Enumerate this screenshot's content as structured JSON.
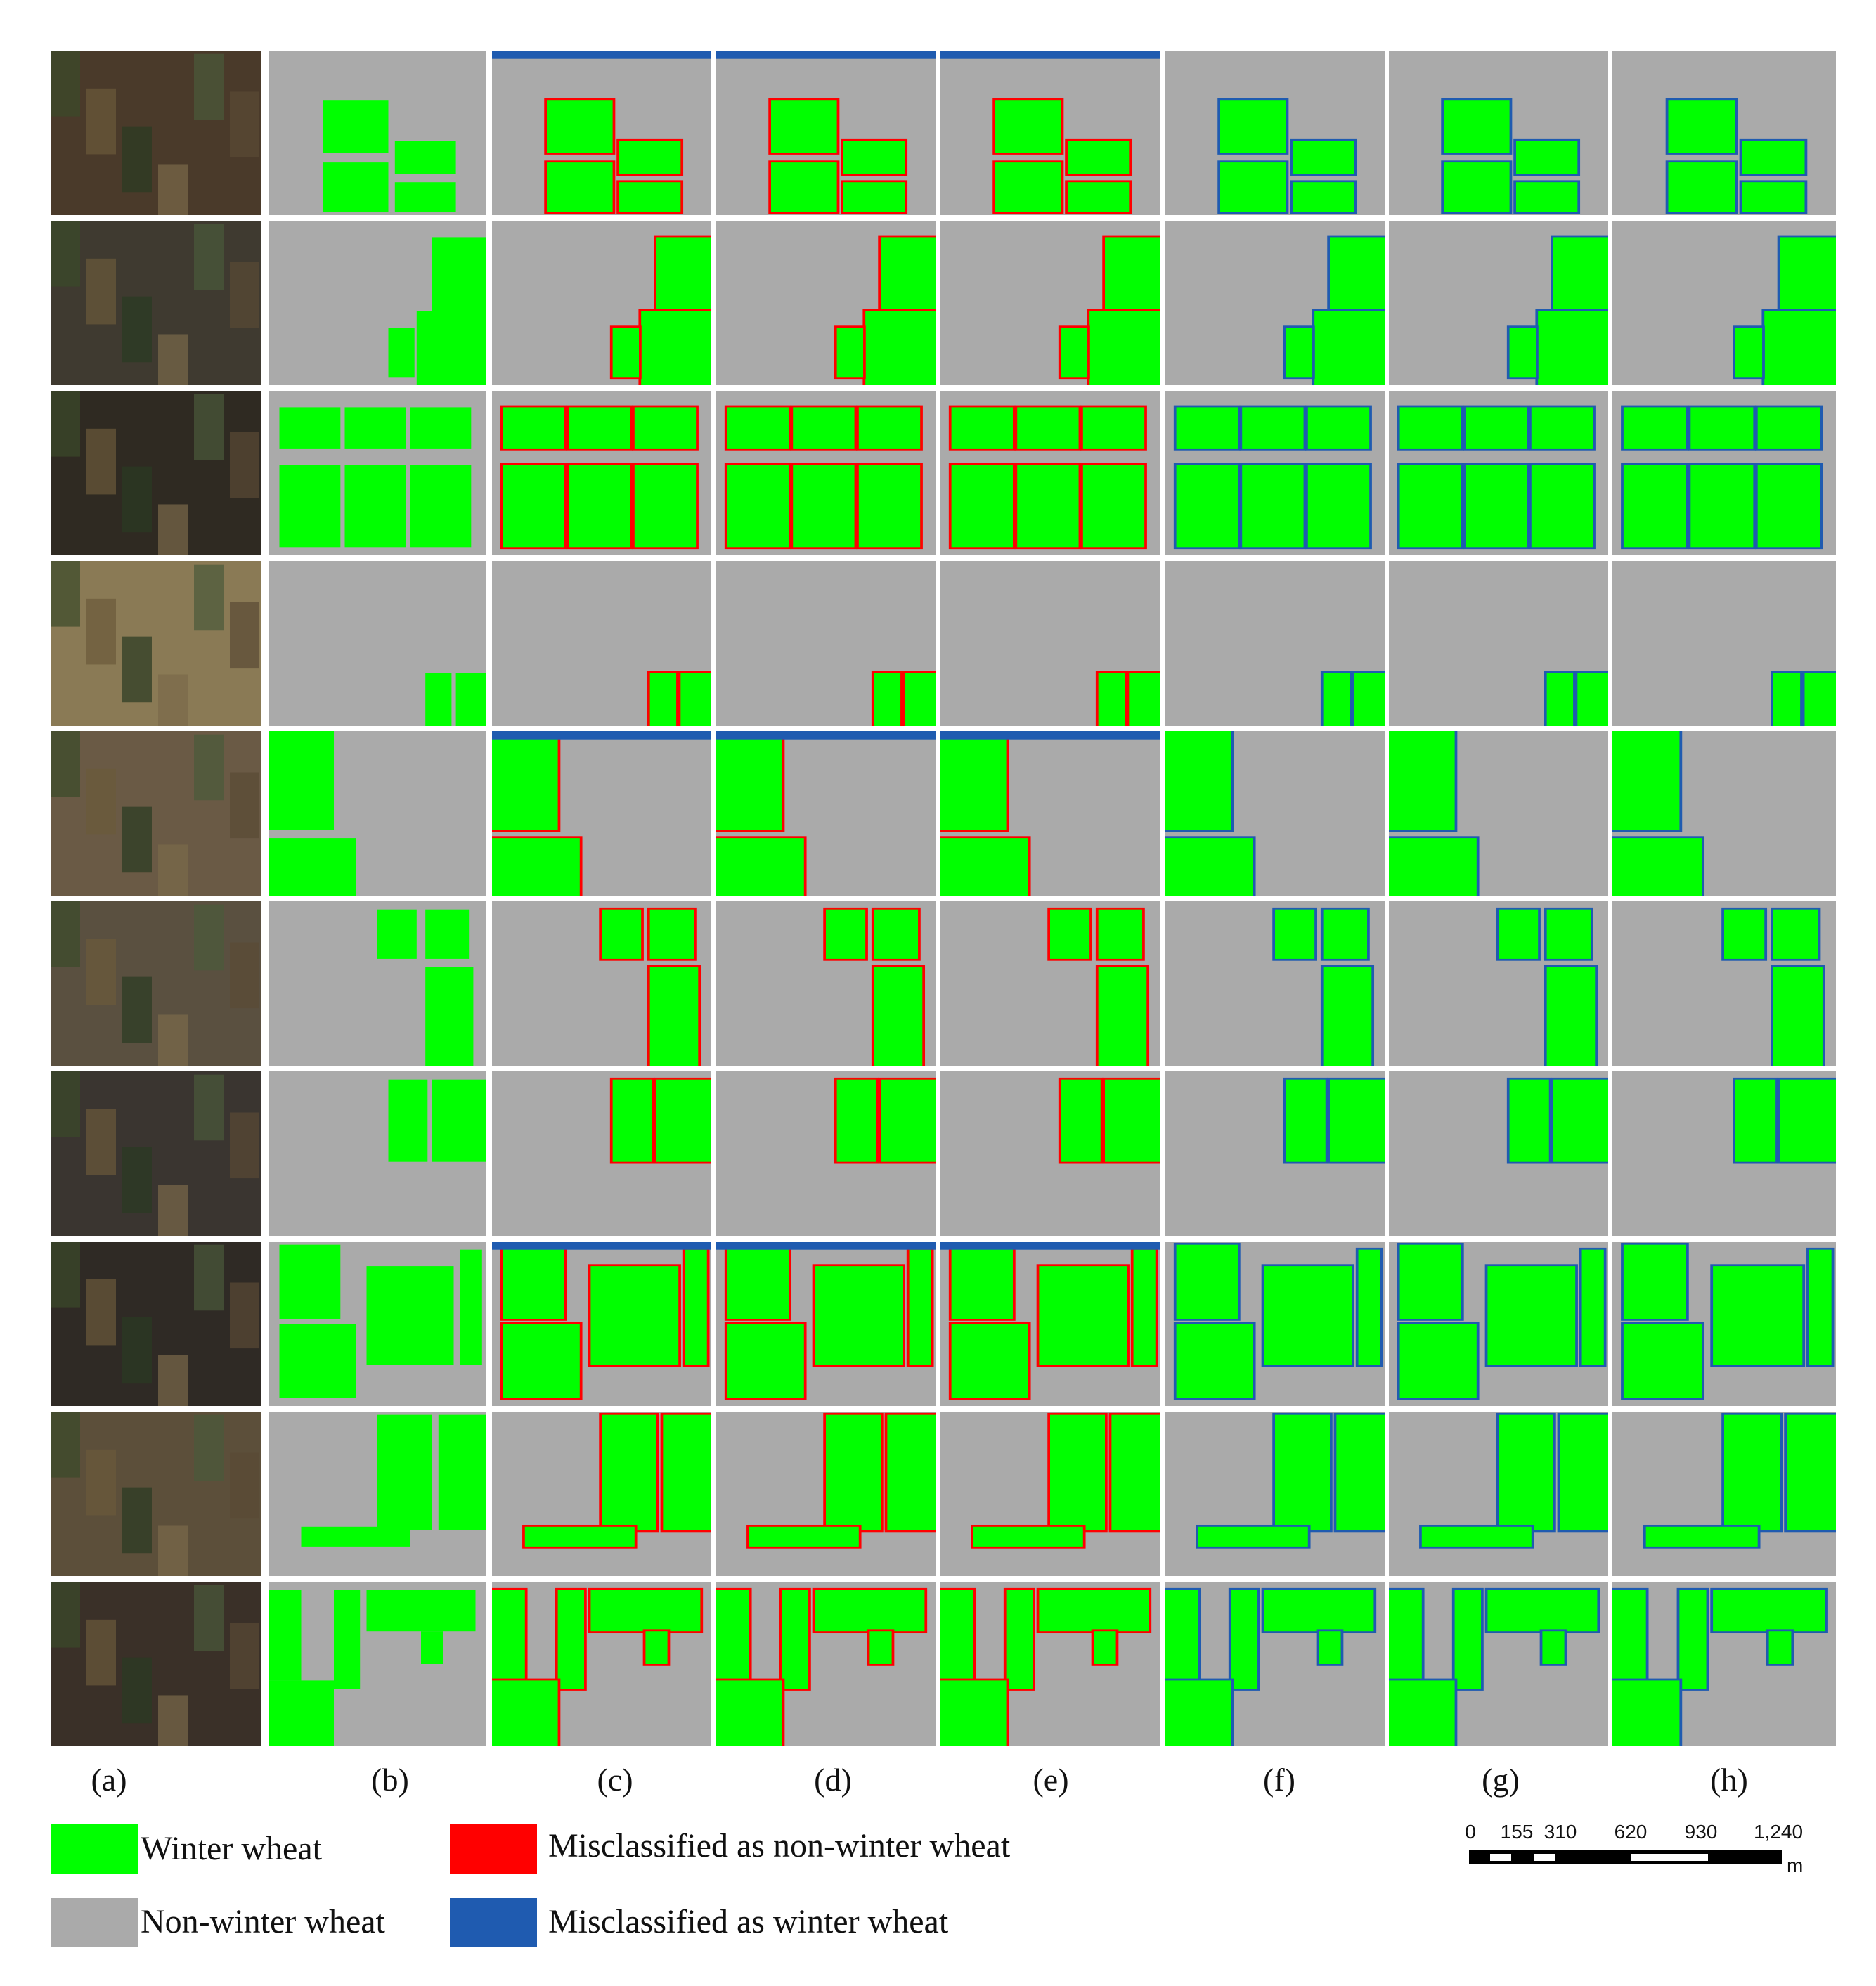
{
  "colors": {
    "winter_wheat": "#00ff00",
    "non_winter_wheat": "#aaaaaa",
    "misclassified_non_winter": "#ff0000",
    "misclassified_winter": "#1f5bb0"
  },
  "columns": [
    "(a)",
    "(b)",
    "(c)",
    "(d)",
    "(e)",
    "(f)",
    "(g)",
    "(h)"
  ],
  "row_count": 10,
  "legend": [
    {
      "label": "Winter wheat",
      "color_key": "winter_wheat"
    },
    {
      "label": "Misclassified as non-winter wheat",
      "color_key": "misclassified_non_winter"
    },
    {
      "label": "Non-winter wheat",
      "color_key": "non_winter_wheat"
    },
    {
      "label": "Misclassified as winter wheat",
      "color_key": "misclassified_winter"
    }
  ],
  "scale_bar": {
    "ticks": [
      "0",
      "155",
      "310",
      "620",
      "930",
      "1,240"
    ],
    "unit": "m"
  }
}
